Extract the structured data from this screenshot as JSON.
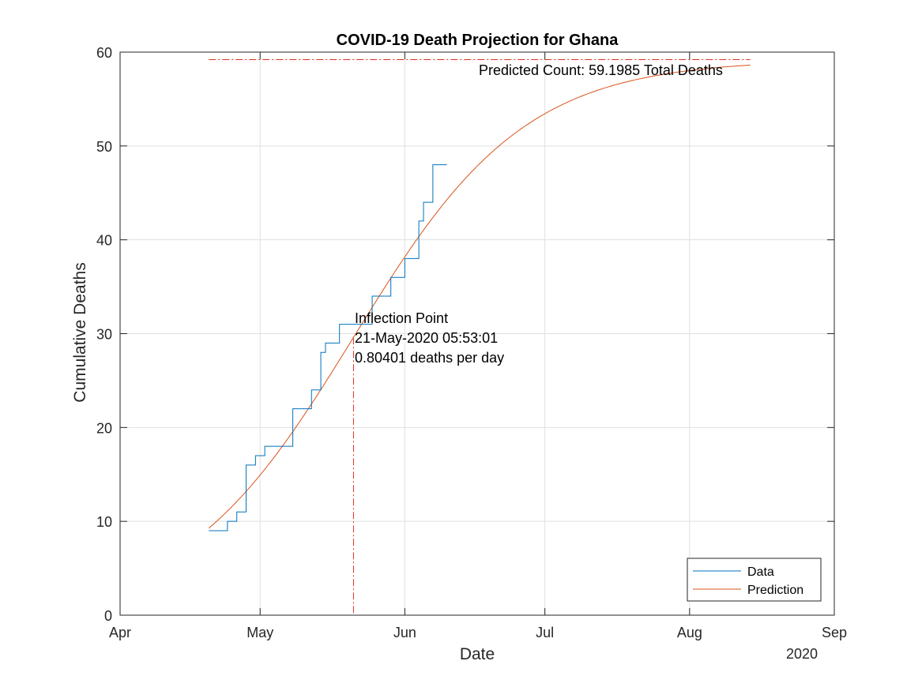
{
  "chart_data": {
    "type": "line",
    "title": "COVID-19 Death Projection for Ghana",
    "xlabel": "Date",
    "ylabel": "Cumulative Deaths",
    "x_year_label": "2020",
    "x_ticks": [
      "Apr",
      "May",
      "Jun",
      "Jul",
      "Aug",
      "Sep"
    ],
    "x_tick_dates": [
      "2020-04-01",
      "2020-05-01",
      "2020-06-01",
      "2020-07-01",
      "2020-08-01",
      "2020-09-01"
    ],
    "xlim": [
      "2020-04-01",
      "2020-09-01"
    ],
    "ylim": [
      0,
      60
    ],
    "y_ticks": [
      0,
      10,
      20,
      30,
      40,
      50,
      60
    ],
    "grid": true,
    "legend_position": "bottom-right",
    "series": [
      {
        "name": "Data",
        "color": "#0072BD",
        "style": "step",
        "points": [
          [
            "2020-04-20",
            9
          ],
          [
            "2020-04-24",
            10
          ],
          [
            "2020-04-26",
            11
          ],
          [
            "2020-04-28",
            16
          ],
          [
            "2020-04-30",
            17
          ],
          [
            "2020-05-02",
            18
          ],
          [
            "2020-05-08",
            22
          ],
          [
            "2020-05-12",
            24
          ],
          [
            "2020-05-14",
            28
          ],
          [
            "2020-05-15",
            29
          ],
          [
            "2020-05-18",
            31
          ],
          [
            "2020-05-25",
            34
          ],
          [
            "2020-05-29",
            36
          ],
          [
            "2020-06-01",
            38
          ],
          [
            "2020-06-04",
            42
          ],
          [
            "2020-06-05",
            44
          ],
          [
            "2020-06-07",
            48
          ],
          [
            "2020-06-10",
            48
          ]
        ]
      },
      {
        "name": "Prediction",
        "color": "#D95319",
        "style": "curve",
        "model": {
          "K": 59.1985,
          "inflection_date": "2020-05-21",
          "rate_per_day": 0.80401
        },
        "x_range": [
          "2020-04-20",
          "2020-08-14"
        ]
      }
    ],
    "asymptote": {
      "value": 59.1985,
      "x_range": [
        "2020-04-20",
        "2020-08-14"
      ],
      "color": "#E03020"
    },
    "inflection_line": {
      "date": "2020-05-21",
      "y_top": 29.6,
      "color": "#E03020"
    },
    "annotations": {
      "predicted_count": "Predicted Count: 59.1985 Total Deaths",
      "inflection_lines": [
        "Inflection Point",
        "21-May-2020 05:53:01",
        "0.80401 deaths per day"
      ]
    }
  }
}
